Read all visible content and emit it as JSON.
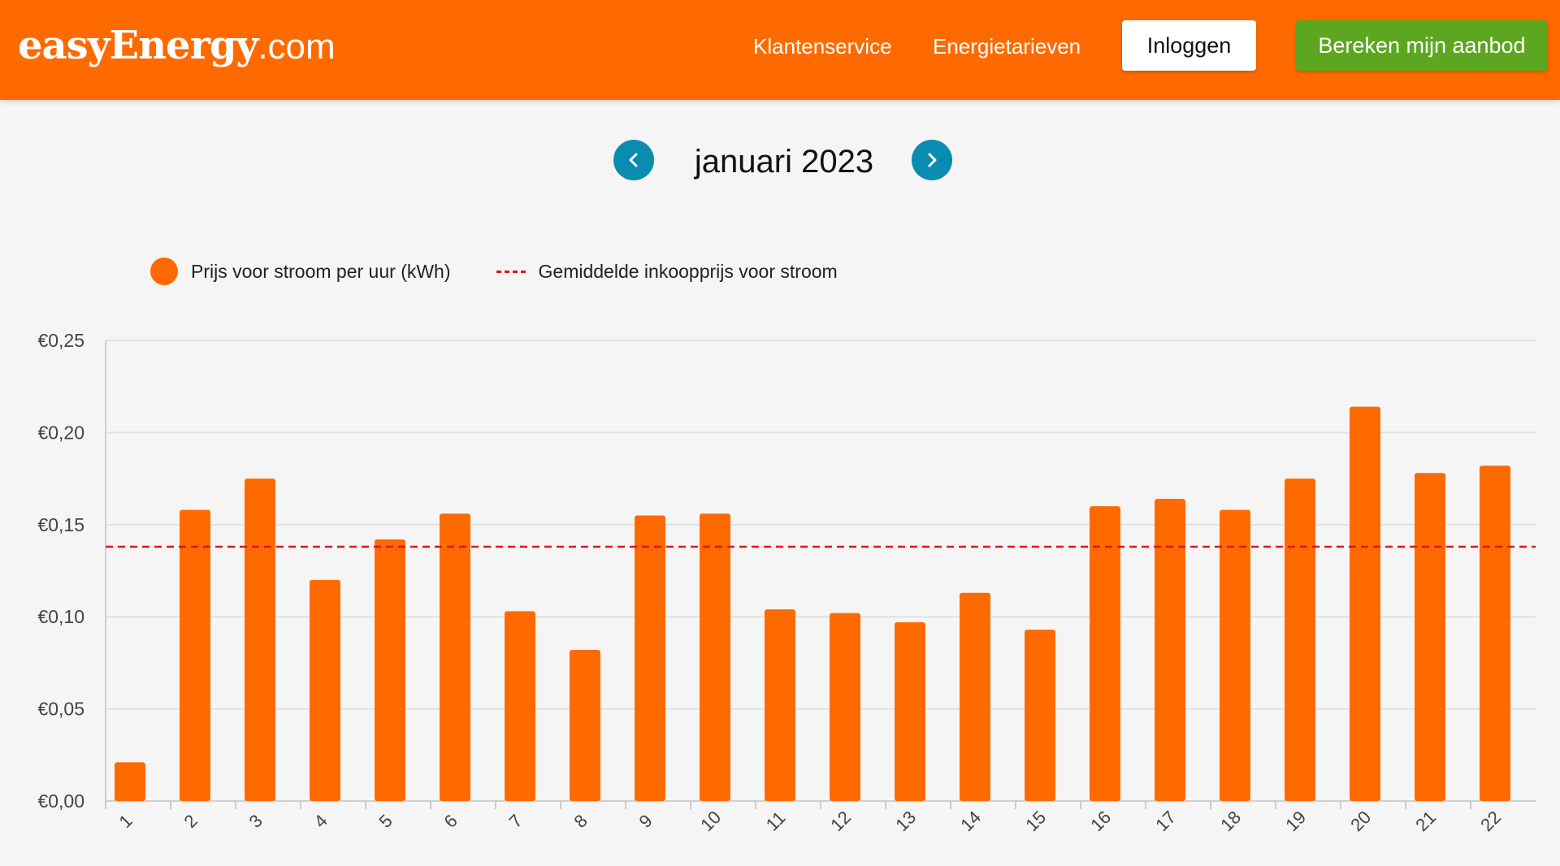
{
  "header": {
    "logo_brand": "easyEnergy",
    "logo_tld": ".com",
    "nav": [
      {
        "label": "Klantenservice"
      },
      {
        "label": "Energietarieven"
      }
    ],
    "login_label": "Inloggen",
    "offer_label": "Bereken mijn aanbod"
  },
  "month_nav": {
    "title": "januari 2023",
    "prev_icon": "chevron-left-icon",
    "next_icon": "chevron-right-icon"
  },
  "colors": {
    "header": "#ff6a00",
    "bar": "#ff6a00",
    "average_line": "#e0161e",
    "nav_button": "#0a8cb0",
    "offer_button": "#5ca71f"
  },
  "chart_data": {
    "type": "bar",
    "legend": [
      {
        "label": "Prijs voor stroom per uur (kWh)",
        "marker": "dot"
      },
      {
        "label": "Gemiddelde inkoopprijs voor stroom",
        "marker": "dashed-line"
      }
    ],
    "legend_position": "top-left",
    "categories": [
      "1",
      "2",
      "3",
      "4",
      "5",
      "6",
      "7",
      "8",
      "9",
      "10",
      "11",
      "12",
      "13",
      "14",
      "15",
      "16",
      "17",
      "18",
      "19",
      "20",
      "21",
      "22"
    ],
    "series": [
      {
        "name": "Prijs voor stroom per uur (kWh)",
        "values": [
          0.021,
          0.158,
          0.175,
          0.12,
          0.142,
          0.156,
          0.103,
          0.082,
          0.155,
          0.156,
          0.104,
          0.102,
          0.097,
          0.113,
          0.093,
          0.16,
          0.164,
          0.158,
          0.175,
          0.214,
          0.178,
          0.182
        ]
      }
    ],
    "average_value": 0.138,
    "y_ticks": [
      "€0,00",
      "€0,05",
      "€0,10",
      "€0,15",
      "€0,20",
      "€0,25"
    ],
    "y_tick_values": [
      0,
      0.05,
      0.1,
      0.15,
      0.2,
      0.25
    ],
    "ylim": [
      0,
      0.25
    ],
    "grid": true
  }
}
